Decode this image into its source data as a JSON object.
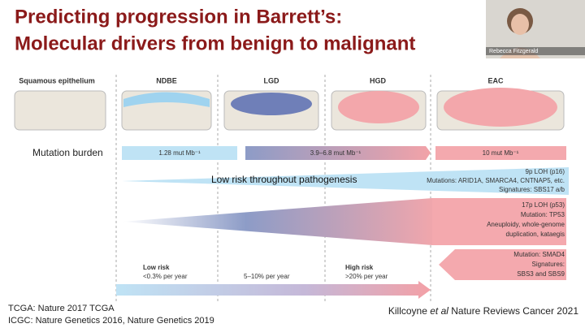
{
  "slide": {
    "title": [
      "Predicting progression in Barrett’s:",
      "Molecular drivers from benign to malignant"
    ],
    "presenter": "Rebecca Fitzgerald",
    "stages": [
      "Squamous epithelium",
      "NDBE",
      "LGD",
      "HGD",
      "EAC"
    ],
    "burden": {
      "label": "Mutation burden",
      "values": [
        "1.28 mut Mb⁻¹",
        "3.9–6.8 mut Mb⁻¹",
        "10 mut Mb⁻¹"
      ]
    },
    "low_risk_wedge": {
      "label": "Low risk throughout pathogenesis",
      "notes": [
        "9p LOH (p16)",
        "Mutations: ARID1A, SMARCA4, CNTNAP5, etc.",
        "Signatures: SBS17 a/b"
      ]
    },
    "p53_block": [
      "17p LOH (p53)",
      "Mutation: TP53",
      "Aneuploidy, whole-genome",
      "duplication, kataegis"
    ],
    "smad4_block": [
      "Mutation: SMAD4",
      "Signatures:",
      "SBS3 and SBS9"
    ],
    "risk": {
      "low": "Low risk",
      "low_rate": "<0.3% per year",
      "mid_rate": "5–10% per year",
      "high": "High risk",
      "high_rate": ">20% per year"
    },
    "footer": [
      "TCGA: Nature 2017 TCGA",
      "ICGC: Nature Genetics 2016, Nature Genetics 2019"
    ],
    "citation": [
      "Killcoyne ",
      "et al",
      " Nature Reviews Cancer 2021"
    ]
  }
}
